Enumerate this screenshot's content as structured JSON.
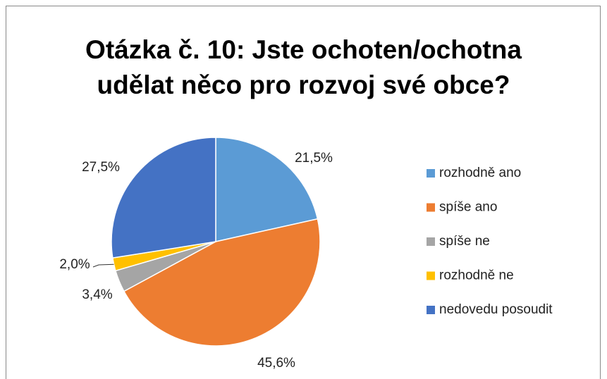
{
  "chart_data": {
    "type": "pie",
    "title": "Otázka č. 10: Jste ochoten/ochotna\nudělat něco pro rozvoj své obce?",
    "categories": [
      "rozhodně ano",
      "spíše ano",
      "spíše ne",
      "rozhodně ne",
      "nedovedu posoudit"
    ],
    "values": [
      21.5,
      45.6,
      3.4,
      2.0,
      27.5
    ],
    "value_labels": [
      "21,5%",
      "45,6%",
      "3,4%",
      "2,0%",
      "27,5%"
    ],
    "colors": [
      "#5b9bd5",
      "#ed7d31",
      "#a5a5a5",
      "#ffc000",
      "#4472c4"
    ],
    "legend": "right"
  }
}
